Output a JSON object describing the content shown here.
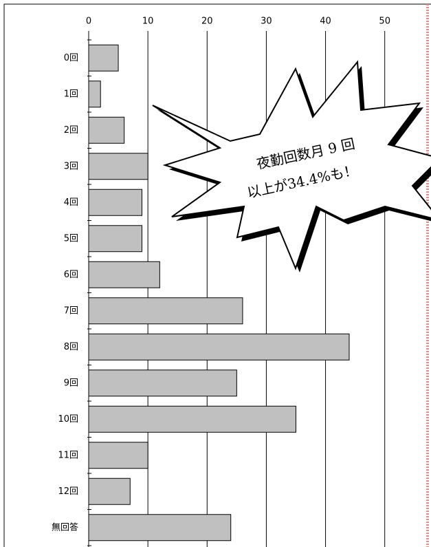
{
  "chart_data": {
    "type": "bar",
    "orientation": "horizontal",
    "categories": [
      "0回",
      "1回",
      "2回",
      "3回",
      "4回",
      "5回",
      "6回",
      "7回",
      "8回",
      "9回",
      "10回",
      "11回",
      "12回",
      "無回答"
    ],
    "values": [
      5,
      2,
      6,
      10,
      9,
      9,
      12,
      26,
      44,
      25,
      35,
      10,
      7,
      24
    ],
    "color": "#c0c0c0",
    "xlim": [
      0,
      57
    ],
    "xticks": [
      0,
      10,
      20,
      30,
      40,
      50
    ],
    "grid": true,
    "annotations": [
      "夜勤回数月 9 回",
      "以上が34.4%も！"
    ]
  }
}
